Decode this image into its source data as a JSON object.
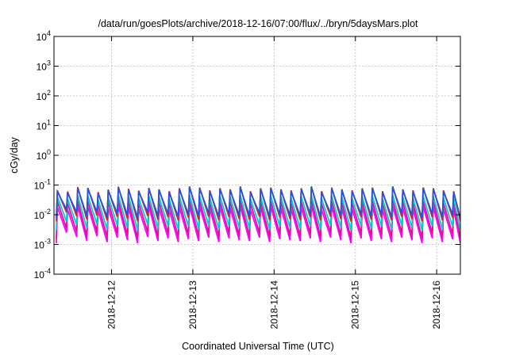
{
  "chart_data": {
    "type": "line",
    "title": "/data/run/goesPlots/archive/2018-12-16/07:00/flux/../bryn/5daysMars.plot",
    "xlabel": "Coordinated Universal Time (UTC)",
    "ylabel": "cGy/day",
    "yscale": "log",
    "ylim": [
      0.0001,
      10000
    ],
    "xlim": [
      "2018-12-11T07:00",
      "2018-12-16T07:00"
    ],
    "x_ticks": [
      {
        "label": "2018-12-12",
        "date": "2018-12-12T00:00"
      },
      {
        "label": "2018-12-13",
        "date": "2018-12-13T00:00"
      },
      {
        "label": "2018-12-14",
        "date": "2018-12-14T00:00"
      },
      {
        "label": "2018-12-15",
        "date": "2018-12-15T00:00"
      },
      {
        "label": "2018-12-16",
        "date": "2018-12-16T00:00"
      }
    ],
    "y_ticks": [
      {
        "value": 0.0001,
        "mant": "10",
        "exp": "-4"
      },
      {
        "value": 0.001,
        "mant": "10",
        "exp": "-3"
      },
      {
        "value": 0.01,
        "mant": "10",
        "exp": "-2"
      },
      {
        "value": 0.1,
        "mant": "10",
        "exp": "-1"
      },
      {
        "value": 1,
        "mant": "10",
        "exp": "0"
      },
      {
        "value": 10,
        "mant": "10",
        "exp": "1"
      },
      {
        "value": 100,
        "mant": "10",
        "exp": "2"
      },
      {
        "value": 1000,
        "mant": "10",
        "exp": "3"
      },
      {
        "value": 10000,
        "mant": "10",
        "exp": "4"
      }
    ],
    "grid": true,
    "legend": "none",
    "sawtooth": {
      "period_hours": 3,
      "peak_times": [
        "2018-12-11T08:00",
        "2018-12-11T11:00",
        "2018-12-11T14:00",
        "2018-12-11T17:00",
        "2018-12-11T20:00",
        "2018-12-11T23:00",
        "2018-12-12T02:00",
        "2018-12-12T05:00",
        "2018-12-12T08:00",
        "2018-12-12T11:00",
        "2018-12-12T14:00",
        "2018-12-12T17:00",
        "2018-12-12T20:00",
        "2018-12-12T23:00",
        "2018-12-13T02:00",
        "2018-12-13T05:00",
        "2018-12-13T08:00",
        "2018-12-13T11:00",
        "2018-12-13T14:00",
        "2018-12-13T17:00",
        "2018-12-13T20:00",
        "2018-12-13T23:00",
        "2018-12-14T02:00",
        "2018-12-14T05:00",
        "2018-12-14T08:00",
        "2018-12-14T11:00",
        "2018-12-14T14:00",
        "2018-12-14T17:00",
        "2018-12-14T20:00",
        "2018-12-14T23:00",
        "2018-12-15T02:00",
        "2018-12-15T05:00",
        "2018-12-15T08:00",
        "2018-12-15T11:00",
        "2018-12-15T14:00",
        "2018-12-15T17:00",
        "2018-12-15T20:00",
        "2018-12-15T23:00",
        "2018-12-16T02:00",
        "2018-12-16T05:00"
      ]
    },
    "series": [
      {
        "color": "#ff00ff",
        "peak": [
          0.018,
          0.015,
          0.02,
          0.019,
          0.014,
          0.017,
          0.02,
          0.018,
          0.016,
          0.019,
          0.017,
          0.015,
          0.018,
          0.02,
          0.019,
          0.016,
          0.018,
          0.017,
          0.02,
          0.015,
          0.018,
          0.019,
          0.017,
          0.016,
          0.018,
          0.02,
          0.015,
          0.019,
          0.017,
          0.016,
          0.018,
          0.019,
          0.015,
          0.02,
          0.017,
          0.016,
          0.019,
          0.018,
          0.016,
          0.015
        ],
        "trough": [
          0.0025,
          0.0018,
          0.0013,
          0.0019,
          0.0012,
          0.0017,
          0.0014,
          0.0011,
          0.0018,
          0.0013,
          0.0016,
          0.0012,
          0.0015,
          0.0013,
          0.0017,
          0.0012,
          0.0016,
          0.0014,
          0.0013,
          0.0017,
          0.0012,
          0.0015,
          0.0014,
          0.0013,
          0.0016,
          0.0012,
          0.0017,
          0.0014,
          0.0011,
          0.0016,
          0.0013,
          0.0015,
          0.0012,
          0.0017,
          0.0014,
          0.0011,
          0.0016,
          0.0012,
          0.0015,
          0.0011
        ]
      },
      {
        "color": "#dd1199",
        "peak": [
          0.028,
          0.024,
          0.03,
          0.029,
          0.022,
          0.027,
          0.03,
          0.028,
          0.025,
          0.029,
          0.027,
          0.024,
          0.028,
          0.031,
          0.029,
          0.025,
          0.028,
          0.027,
          0.031,
          0.024,
          0.028,
          0.029,
          0.027,
          0.025,
          0.028,
          0.031,
          0.024,
          0.029,
          0.027,
          0.025,
          0.028,
          0.029,
          0.024,
          0.031,
          0.027,
          0.025,
          0.029,
          0.028,
          0.025,
          0.024
        ],
        "trough": [
          0.0035,
          0.0026,
          0.0019,
          0.0027,
          0.0018,
          0.0024,
          0.002,
          0.0016,
          0.0026,
          0.0019,
          0.0023,
          0.0018,
          0.0022,
          0.0019,
          0.0024,
          0.0018,
          0.0023,
          0.002,
          0.0019,
          0.0024,
          0.0018,
          0.0022,
          0.002,
          0.0019,
          0.0023,
          0.0018,
          0.0024,
          0.002,
          0.0016,
          0.0023,
          0.0019,
          0.0022,
          0.0018,
          0.0024,
          0.002,
          0.0016,
          0.0023,
          0.0018,
          0.0022,
          0.0016
        ]
      },
      {
        "color": "#00cfcf",
        "peak": [
          0.04,
          0.035,
          0.045,
          0.043,
          0.033,
          0.04,
          0.045,
          0.042,
          0.037,
          0.043,
          0.04,
          0.035,
          0.042,
          0.046,
          0.043,
          0.037,
          0.042,
          0.04,
          0.046,
          0.035,
          0.042,
          0.043,
          0.04,
          0.037,
          0.042,
          0.046,
          0.035,
          0.043,
          0.04,
          0.037,
          0.042,
          0.043,
          0.035,
          0.046,
          0.04,
          0.037,
          0.043,
          0.042,
          0.037,
          0.035
        ],
        "trough": [
          0.006,
          0.0045,
          0.0035,
          0.0048,
          0.0032,
          0.0043,
          0.0036,
          0.003,
          0.0046,
          0.0034,
          0.0041,
          0.0032,
          0.004,
          0.0034,
          0.0043,
          0.0032,
          0.0041,
          0.0036,
          0.0034,
          0.0043,
          0.0032,
          0.004,
          0.0036,
          0.0034,
          0.0041,
          0.0032,
          0.0043,
          0.0036,
          0.003,
          0.0041,
          0.0034,
          0.004,
          0.0032,
          0.0043,
          0.0036,
          0.003,
          0.0041,
          0.0032,
          0.004,
          0.003
        ]
      },
      {
        "color": "#e02020",
        "peak": [
          0.065,
          0.06,
          0.085,
          0.08,
          0.058,
          0.07,
          0.088,
          0.075,
          0.065,
          0.08,
          0.072,
          0.062,
          0.078,
          0.09,
          0.082,
          0.066,
          0.078,
          0.072,
          0.09,
          0.062,
          0.078,
          0.082,
          0.072,
          0.066,
          0.078,
          0.09,
          0.062,
          0.082,
          0.072,
          0.066,
          0.078,
          0.082,
          0.062,
          0.09,
          0.072,
          0.066,
          0.082,
          0.078,
          0.066,
          0.062
        ],
        "trough": [
          0.012,
          0.009,
          0.007,
          0.0095,
          0.0065,
          0.0085,
          0.0072,
          0.006,
          0.0092,
          0.0068,
          0.0082,
          0.0065,
          0.008,
          0.0068,
          0.0085,
          0.0065,
          0.0082,
          0.0072,
          0.0068,
          0.0085,
          0.0065,
          0.008,
          0.0072,
          0.0068,
          0.0082,
          0.0065,
          0.0085,
          0.0072,
          0.006,
          0.0082,
          0.0068,
          0.008,
          0.0065,
          0.0085,
          0.0072,
          0.006,
          0.0082,
          0.0065,
          0.008,
          0.006
        ]
      },
      {
        "color": "#2255dd",
        "peak": [
          0.06,
          0.055,
          0.08,
          0.075,
          0.052,
          0.065,
          0.083,
          0.07,
          0.06,
          0.075,
          0.067,
          0.057,
          0.073,
          0.085,
          0.077,
          0.061,
          0.073,
          0.067,
          0.085,
          0.057,
          0.073,
          0.077,
          0.067,
          0.061,
          0.073,
          0.085,
          0.057,
          0.077,
          0.067,
          0.061,
          0.073,
          0.077,
          0.057,
          0.085,
          0.067,
          0.061,
          0.077,
          0.073,
          0.061,
          0.057
        ],
        "trough": [
          0.015,
          0.012,
          0.009,
          0.012,
          0.0085,
          0.011,
          0.0095,
          0.008,
          0.012,
          0.009,
          0.0105,
          0.0085,
          0.0102,
          0.009,
          0.011,
          0.0085,
          0.0105,
          0.0095,
          0.009,
          0.011,
          0.0085,
          0.0102,
          0.0095,
          0.009,
          0.0105,
          0.0085,
          0.011,
          0.0095,
          0.008,
          0.0105,
          0.009,
          0.0102,
          0.0085,
          0.011,
          0.0095,
          0.008,
          0.0105,
          0.0085,
          0.0102,
          0.008
        ]
      }
    ]
  }
}
